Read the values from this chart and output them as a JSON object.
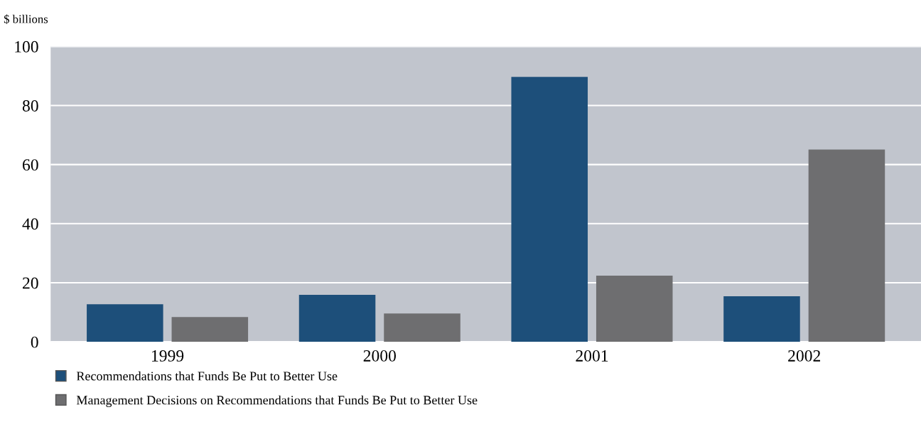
{
  "chart_data": {
    "type": "bar",
    "ylabel": "$ billions",
    "categories": [
      "1999",
      "2000",
      "2001",
      "2002"
    ],
    "series": [
      {
        "name": "Recommendations that Funds Be Put to Better Use",
        "color": "#1d4f7a",
        "values": [
          12.7,
          15.9,
          89.7,
          15.4
        ]
      },
      {
        "name": "Management Decisions on Recommendations that Funds Be Put to Better Use",
        "color": "#6e6e70",
        "values": [
          8.4,
          9.6,
          22.4,
          65.1
        ]
      }
    ],
    "ylim": [
      0,
      100
    ],
    "yticks": [
      0,
      20,
      40,
      60,
      80,
      100
    ],
    "grid": "y",
    "legend": "bottom left"
  }
}
